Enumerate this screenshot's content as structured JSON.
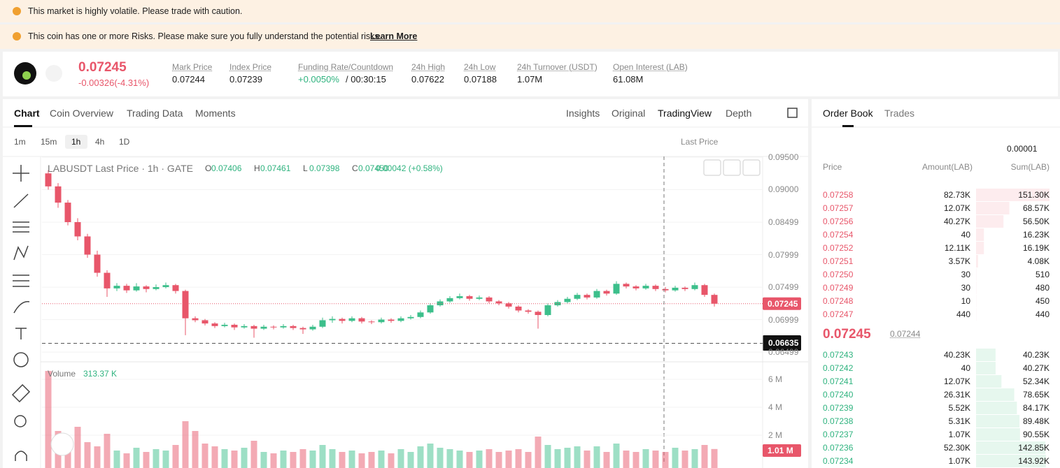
{
  "banners": [
    "This market is highly volatile. Please trade with caution.",
    "This coin has one or more Risks. Please make sure you fully understand the potential risks."
  ],
  "learn_more": "Learn More",
  "ticker": {
    "price": "0.07245",
    "change": "-0.00326(-4.31%)",
    "stats": [
      {
        "label": "Mark Price",
        "value": "0.07244"
      },
      {
        "label": "Index Price",
        "value": "0.07239"
      },
      {
        "label": "Funding Rate/Countdown",
        "value": "+0.0050%",
        "extra": "/ 00:30:15"
      },
      {
        "label": "24h High",
        "value": "0.07622"
      },
      {
        "label": "24h Low",
        "value": "0.07188"
      },
      {
        "label": "24h Turnover (USDT)",
        "value": "1.07M"
      },
      {
        "label": "Open Interest (LAB)",
        "value": "61.08M"
      }
    ]
  },
  "tabs": [
    "Chart",
    "Coin Overview",
    "Trading Data",
    "Moments"
  ],
  "views": [
    "Insights",
    "Original",
    "TradingView",
    "Depth"
  ],
  "intervals": [
    "1m",
    "15m",
    "1h",
    "4h",
    "1D"
  ],
  "price_type": "Last Price",
  "chart_data": {
    "type": "candlestick",
    "title": "LABUSDT Last Price · 1h · GATE",
    "legend": [
      {
        "k": "O",
        "v": "0.07406"
      },
      {
        "k": "H",
        "v": "0.07461"
      },
      {
        "k": "L",
        "v": "0.07398"
      },
      {
        "k": "C",
        "v": "0.07450"
      }
    ],
    "change": "0.00042 (+0.58%)",
    "candles": [
      [
        0.0925,
        0.093,
        0.09,
        0.0905
      ],
      [
        0.0905,
        0.091,
        0.0872,
        0.088
      ],
      [
        0.088,
        0.0884,
        0.0845,
        0.085
      ],
      [
        0.085,
        0.0856,
        0.0822,
        0.0828
      ],
      [
        0.0828,
        0.0832,
        0.0795,
        0.08
      ],
      [
        0.08,
        0.0806,
        0.0766,
        0.0772
      ],
      [
        0.0772,
        0.0776,
        0.0735,
        0.0748
      ],
      [
        0.0748,
        0.0756,
        0.0744,
        0.0752
      ],
      [
        0.0752,
        0.0755,
        0.0741,
        0.0745
      ],
      [
        0.0745,
        0.0756,
        0.0743,
        0.0751
      ],
      [
        0.0751,
        0.0753,
        0.0742,
        0.0747
      ],
      [
        0.0747,
        0.0754,
        0.0745,
        0.075
      ],
      [
        0.075,
        0.0757,
        0.0748,
        0.0753
      ],
      [
        0.0753,
        0.0755,
        0.074,
        0.0744
      ],
      [
        0.0744,
        0.0746,
        0.0676,
        0.0702
      ],
      [
        0.0702,
        0.0705,
        0.0696,
        0.0699
      ],
      [
        0.0699,
        0.0701,
        0.0691,
        0.0694
      ],
      [
        0.0694,
        0.0696,
        0.0687,
        0.069
      ],
      [
        0.069,
        0.0695,
        0.0688,
        0.0692
      ],
      [
        0.0692,
        0.0694,
        0.0684,
        0.0688
      ],
      [
        0.0688,
        0.0693,
        0.0686,
        0.069
      ],
      [
        0.069,
        0.0692,
        0.0672,
        0.0686
      ],
      [
        0.0686,
        0.0692,
        0.0684,
        0.0689
      ],
      [
        0.0689,
        0.0691,
        0.0685,
        0.0688
      ],
      [
        0.0688,
        0.0693,
        0.0686,
        0.069
      ],
      [
        0.069,
        0.0692,
        0.0684,
        0.0687
      ],
      [
        0.0687,
        0.0689,
        0.0678,
        0.0685
      ],
      [
        0.0685,
        0.0692,
        0.0683,
        0.0689
      ],
      [
        0.0689,
        0.0703,
        0.0687,
        0.0699
      ],
      [
        0.0699,
        0.0705,
        0.0695,
        0.0701
      ],
      [
        0.0701,
        0.0703,
        0.0694,
        0.0698
      ],
      [
        0.0698,
        0.0705,
        0.0696,
        0.0702
      ],
      [
        0.0702,
        0.0704,
        0.0694,
        0.0697
      ],
      [
        0.0697,
        0.0699,
        0.0693,
        0.0696
      ],
      [
        0.0696,
        0.0703,
        0.0694,
        0.07
      ],
      [
        0.07,
        0.0702,
        0.0695,
        0.0698
      ],
      [
        0.0698,
        0.0705,
        0.0696,
        0.0702
      ],
      [
        0.0702,
        0.0707,
        0.07,
        0.0704
      ],
      [
        0.0704,
        0.0714,
        0.0702,
        0.0711
      ],
      [
        0.0711,
        0.0725,
        0.0709,
        0.0722
      ],
      [
        0.0722,
        0.0731,
        0.072,
        0.0728
      ],
      [
        0.0728,
        0.0736,
        0.0726,
        0.0733
      ],
      [
        0.0733,
        0.074,
        0.0731,
        0.0736
      ],
      [
        0.0736,
        0.0738,
        0.0729,
        0.0732
      ],
      [
        0.0732,
        0.0737,
        0.073,
        0.0734
      ],
      [
        0.0734,
        0.0736,
        0.0725,
        0.0728
      ],
      [
        0.0728,
        0.073,
        0.0722,
        0.0725
      ],
      [
        0.0725,
        0.0727,
        0.0717,
        0.072
      ],
      [
        0.072,
        0.0722,
        0.0711,
        0.0714
      ],
      [
        0.0714,
        0.0716,
        0.0709,
        0.0712
      ],
      [
        0.0712,
        0.0714,
        0.0686,
        0.0707
      ],
      [
        0.0707,
        0.0725,
        0.0705,
        0.0722
      ],
      [
        0.0722,
        0.073,
        0.072,
        0.0727
      ],
      [
        0.0727,
        0.0735,
        0.0725,
        0.0732
      ],
      [
        0.0732,
        0.0741,
        0.073,
        0.0738
      ],
      [
        0.0738,
        0.074,
        0.0731,
        0.0734
      ],
      [
        0.0734,
        0.0747,
        0.0732,
        0.0744
      ],
      [
        0.0744,
        0.0746,
        0.0737,
        0.074
      ],
      [
        0.074,
        0.0759,
        0.0738,
        0.0755
      ],
      [
        0.0755,
        0.0757,
        0.0748,
        0.0751
      ],
      [
        0.0751,
        0.0753,
        0.0745,
        0.0748
      ],
      [
        0.0748,
        0.0755,
        0.0746,
        0.0752
      ],
      [
        0.0752,
        0.0754,
        0.0744,
        0.0747
      ],
      [
        0.0747,
        0.075,
        0.0742,
        0.0745
      ],
      [
        0.0745,
        0.0752,
        0.0743,
        0.0749
      ],
      [
        0.0749,
        0.0751,
        0.0744,
        0.0747
      ],
      [
        0.0747,
        0.0757,
        0.0745,
        0.0753
      ],
      [
        0.0753,
        0.0755,
        0.0735,
        0.0738
      ],
      [
        0.0738,
        0.074,
        0.072,
        0.07245
      ]
    ],
    "up_color": "#3cbf8b",
    "down_color": "#e8566a",
    "ylim": [
      0.06382,
      0.09575
    ],
    "yticks": [
      {
        "value": 0.095,
        "label": "0.09500"
      },
      {
        "value": 0.09,
        "label": "0.09000"
      },
      0.08499,
      0.07999,
      0.07499,
      0.06999,
      0.06499
    ],
    "last_price": 0.07245,
    "crosshair_price": 0.06635,
    "volume": {
      "title": "Volume",
      "last": "313.37 K",
      "last_badge": "1.01 M",
      "values": [
        6600000,
        2300000,
        1800000,
        2600000,
        1500000,
        1200000,
        2100000,
        900000,
        700000,
        1100000,
        800000,
        1000000,
        900000,
        1300000,
        3000000,
        2300000,
        1400000,
        1200000,
        1000000,
        900000,
        1100000,
        1600000,
        800000,
        700000,
        900000,
        800000,
        1000000,
        900000,
        1300000,
        1000000,
        800000,
        900000,
        700000,
        800000,
        900000,
        700000,
        1000000,
        800000,
        1200000,
        1400000,
        1100000,
        1000000,
        900000,
        800000,
        900000,
        1000000,
        800000,
        900000,
        1000000,
        800000,
        1900000,
        1300000,
        1000000,
        1100000,
        1200000,
        900000,
        1200000,
        800000,
        1400000,
        900000,
        800000,
        1000000,
        900000,
        800000,
        1100000,
        900000,
        1000000,
        1300000,
        1010000
      ],
      "ylim": [
        0,
        6900000
      ],
      "yticks": [
        {
          "value": 2000000,
          "label": "2 M"
        },
        {
          "value": 4000000,
          "label": "4 M"
        },
        {
          "value": 6000000,
          "label": "6 M"
        }
      ]
    }
  },
  "order_book": {
    "tabs": [
      "Order Book",
      "Trades"
    ],
    "precision": "0.00001",
    "headers": [
      "Price",
      "Amount(LAB)",
      "Sum(LAB)"
    ],
    "asks": [
      {
        "price": "0.07258",
        "amount": "82.73K",
        "sum": {
          "value": 151300,
          "label": "151.30K"
        }
      },
      {
        "price": "0.07257",
        "amount": "12.07K",
        "sum": {
          "value": 68570,
          "label": "68.57K"
        }
      },
      {
        "price": "0.07256",
        "amount": "40.27K",
        "sum": {
          "value": 56500,
          "label": "56.50K"
        }
      },
      {
        "price": "0.07254",
        "amount": "40",
        "sum": {
          "value": 16230,
          "label": "16.23K"
        }
      },
      {
        "price": "0.07252",
        "amount": "12.11K",
        "sum": {
          "value": 16190,
          "label": "16.19K"
        }
      },
      {
        "price": "0.07251",
        "amount": "3.57K",
        "sum": {
          "value": 4080,
          "label": "4.08K"
        }
      },
      {
        "price": "0.07250",
        "amount": "30",
        "sum": 510
      },
      {
        "price": "0.07249",
        "amount": "30",
        "sum": 480
      },
      {
        "price": "0.07248",
        "amount": "10",
        "sum": 450
      },
      {
        "price": "0.07247",
        "amount": "440",
        "sum": 440
      }
    ],
    "mid": {
      "price": "0.07245",
      "mark": "0.07244"
    },
    "bids": [
      {
        "price": "0.07243",
        "amount": "40.23K",
        "sum": {
          "value": 40230,
          "label": "40.23K"
        }
      },
      {
        "price": "0.07242",
        "amount": "40",
        "sum": {
          "value": 40270,
          "label": "40.27K"
        }
      },
      {
        "price": "0.07241",
        "amount": "12.07K",
        "sum": {
          "value": 52340,
          "label": "52.34K"
        }
      },
      {
        "price": "0.07240",
        "amount": "26.31K",
        "sum": {
          "value": 78650,
          "label": "78.65K"
        }
      },
      {
        "price": "0.07239",
        "amount": "5.52K",
        "sum": {
          "value": 84170,
          "label": "84.17K"
        }
      },
      {
        "price": "0.07238",
        "amount": "5.31K",
        "sum": {
          "value": 89480,
          "label": "89.48K"
        }
      },
      {
        "price": "0.07237",
        "amount": "1.07K",
        "sum": {
          "value": 90550,
          "label": "90.55K"
        }
      },
      {
        "price": "0.07236",
        "amount": "52.30K",
        "sum": {
          "value": 142850,
          "label": "142.85K"
        }
      },
      {
        "price": "0.07234",
        "amount": "1.07K",
        "sum": {
          "value": 143920,
          "label": "143.92K"
        }
      }
    ]
  }
}
